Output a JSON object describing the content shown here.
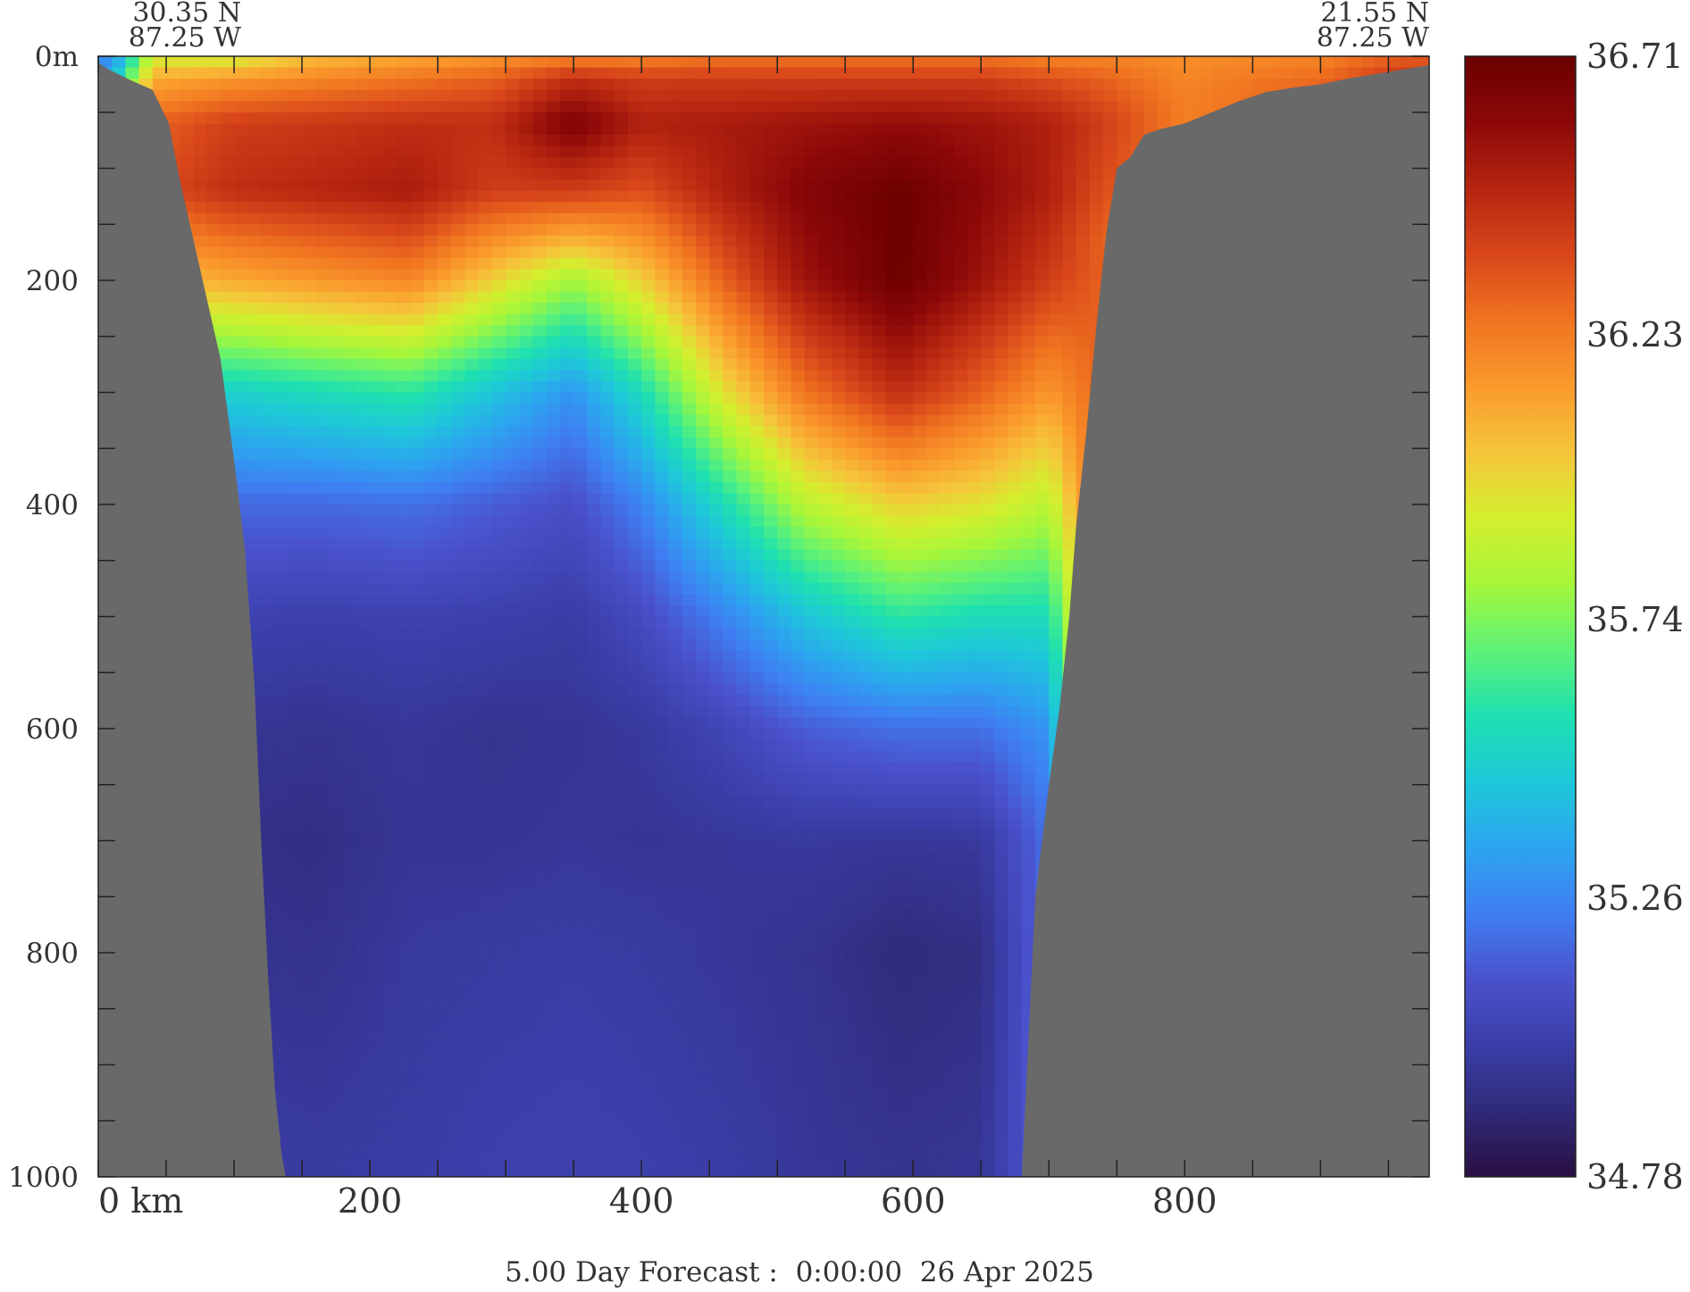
{
  "chart_data": {
    "type": "heatmap",
    "title": "",
    "xlabel": "",
    "ylabel": "",
    "section_start": {
      "lat": "30.35 N",
      "lon": "87.25 W"
    },
    "section_end": {
      "lat": "21.55 N",
      "lon": "87.25 W"
    },
    "x": {
      "min": 0,
      "max": 980,
      "ticks": [
        0,
        200,
        400,
        600,
        800
      ],
      "tick_labels": [
        "0 km",
        "200",
        "400",
        "600",
        "800"
      ],
      "minor_step": 50
    },
    "y": {
      "min": 0,
      "max": 1000,
      "inverted": true,
      "ticks": [
        0,
        200,
        400,
        600,
        800,
        1000
      ],
      "tick_labels": [
        "0m",
        "200",
        "400",
        "600",
        "800",
        "1000"
      ],
      "minor_step": 50
    },
    "colorbar": {
      "min": 34.78,
      "max": 36.71,
      "tick_values": [
        36.71,
        36.23,
        35.74,
        35.26,
        34.78
      ],
      "tick_labels": [
        "36.71",
        "36.23",
        "35.74",
        "35.26",
        "34.78"
      ],
      "palette": [
        "#2a0f42",
        "#2f2a78",
        "#3b3ea8",
        "#4a52cc",
        "#3f7ef2",
        "#2ca5ef",
        "#1ec8d8",
        "#1ee0b0",
        "#5ef276",
        "#a6f63a",
        "#d4ef2e",
        "#f6c43a",
        "#fa9a2c",
        "#f07320",
        "#d8461a",
        "#b52510",
        "#8c0808",
        "#6b0000"
      ]
    },
    "land_color": "#696969",
    "bathymetry": {
      "x": [
        0,
        8,
        25,
        40,
        52,
        60,
        75,
        90,
        100,
        108,
        115,
        120,
        125,
        130,
        135,
        138,
        680,
        690,
        700,
        708,
        715,
        720,
        728,
        735,
        742,
        750,
        760,
        770,
        782,
        800,
        820,
        840,
        860,
        880,
        900,
        920,
        940,
        960,
        980
      ],
      "depth": [
        6,
        12,
        22,
        30,
        60,
        110,
        190,
        270,
        360,
        440,
        560,
        700,
        820,
        920,
        980,
        1000,
        1000,
        750,
        650,
        580,
        500,
        420,
        330,
        240,
        160,
        100,
        90,
        70,
        65,
        60,
        50,
        40,
        32,
        28,
        25,
        20,
        16,
        12,
        8
      ]
    },
    "salinity_profiles": [
      {
        "x": 10,
        "z": [
          0,
          20,
          30
        ],
        "s": [
          35.25,
          35.4,
          35.55
        ]
      },
      {
        "x": 40,
        "z": [
          0,
          20,
          60,
          120,
          200,
          300,
          400,
          500,
          600,
          700,
          800,
          1000
        ],
        "s": [
          35.9,
          36.1,
          36.3,
          36.35,
          36.05,
          35.5,
          35.2,
          35.05,
          34.98,
          34.97,
          34.98,
          35.0
        ]
      },
      {
        "x": 100,
        "z": [
          0,
          20,
          60,
          120,
          200,
          300,
          400,
          500,
          600,
          700,
          800,
          1000
        ],
        "s": [
          35.9,
          36.15,
          36.4,
          36.45,
          36.1,
          35.5,
          35.18,
          35.03,
          34.96,
          34.93,
          34.95,
          35.0
        ]
      },
      {
        "x": 160,
        "z": [
          0,
          20,
          60,
          120,
          200,
          300,
          400,
          500,
          600,
          700,
          800,
          1000
        ],
        "s": [
          36.05,
          36.2,
          36.42,
          36.48,
          36.15,
          35.55,
          35.18,
          35.02,
          34.95,
          34.92,
          34.94,
          34.99
        ]
      },
      {
        "x": 230,
        "z": [
          0,
          20,
          60,
          120,
          200,
          300,
          400,
          500,
          600,
          700,
          800,
          1000
        ],
        "s": [
          36.1,
          36.25,
          36.45,
          36.52,
          36.2,
          35.6,
          35.2,
          35.03,
          34.97,
          34.96,
          34.98,
          35.0
        ]
      },
      {
        "x": 290,
        "z": [
          0,
          20,
          60,
          120,
          200,
          300,
          400,
          500,
          600,
          700,
          800,
          1000
        ],
        "s": [
          36.15,
          36.3,
          36.45,
          36.4,
          36.0,
          35.45,
          35.15,
          35.02,
          34.95,
          34.96,
          34.99,
          35.02
        ]
      },
      {
        "x": 350,
        "z": [
          0,
          20,
          60,
          120,
          200,
          300,
          400,
          500,
          600,
          700,
          800,
          1000
        ],
        "s": [
          36.2,
          36.45,
          36.65,
          36.4,
          35.8,
          35.3,
          35.1,
          35.0,
          34.96,
          34.97,
          35.0,
          35.03
        ]
      },
      {
        "x": 400,
        "z": [
          0,
          20,
          60,
          120,
          200,
          300,
          400,
          500,
          600,
          700,
          800,
          1000
        ],
        "s": [
          36.2,
          36.4,
          36.5,
          36.35,
          36.0,
          35.55,
          35.25,
          35.08,
          34.98,
          34.96,
          34.99,
          35.02
        ]
      },
      {
        "x": 460,
        "z": [
          0,
          20,
          60,
          120,
          200,
          300,
          400,
          500,
          600,
          700,
          800,
          1000
        ],
        "s": [
          36.25,
          36.4,
          36.52,
          36.5,
          36.3,
          35.95,
          35.55,
          35.25,
          35.05,
          34.97,
          34.97,
          35.0
        ]
      },
      {
        "x": 520,
        "z": [
          0,
          20,
          60,
          120,
          200,
          300,
          400,
          500,
          600,
          700,
          800,
          1000
        ],
        "s": [
          36.25,
          36.4,
          36.55,
          36.62,
          36.55,
          36.25,
          35.85,
          35.45,
          35.15,
          34.98,
          34.95,
          34.97
        ]
      },
      {
        "x": 590,
        "z": [
          0,
          20,
          60,
          120,
          200,
          300,
          400,
          500,
          600,
          700,
          800,
          1000
        ],
        "s": [
          36.25,
          36.4,
          36.58,
          36.7,
          36.7,
          36.45,
          36.0,
          35.6,
          35.2,
          34.97,
          34.9,
          34.95
        ]
      },
      {
        "x": 650,
        "z": [
          0,
          20,
          60,
          120,
          200,
          300,
          400,
          500,
          600,
          700,
          800,
          1000
        ],
        "s": [
          36.25,
          36.4,
          36.55,
          36.6,
          36.55,
          36.3,
          35.95,
          35.55,
          35.2,
          34.98,
          34.92,
          34.96
        ]
      },
      {
        "x": 700,
        "z": [
          0,
          20,
          60,
          120,
          200,
          300,
          400,
          500,
          600,
          700
        ],
        "s": [
          36.2,
          36.35,
          36.5,
          36.5,
          36.4,
          36.15,
          35.85,
          35.55,
          35.3,
          35.2
        ]
      },
      {
        "x": 740,
        "z": [
          0,
          20,
          60,
          120,
          160
        ],
        "s": [
          36.2,
          36.3,
          36.4,
          36.35,
          36.3
        ]
      },
      {
        "x": 800,
        "z": [
          0,
          20,
          40,
          60
        ],
        "s": [
          36.18,
          36.2,
          36.22,
          36.22
        ]
      },
      {
        "x": 900,
        "z": [
          0,
          20,
          30
        ],
        "s": [
          36.2,
          36.28,
          36.3
        ]
      },
      {
        "x": 960,
        "z": [
          0,
          10,
          20
        ],
        "s": [
          36.3,
          36.38,
          36.42
        ]
      }
    ],
    "caption": "5.00 Day Forecast :  0:00:00  26 Apr 2025"
  }
}
